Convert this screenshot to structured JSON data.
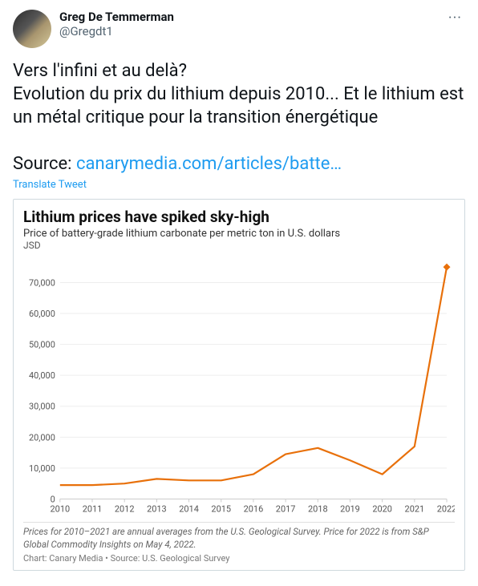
{
  "user": {
    "display_name": "Greg De Temmerman",
    "handle": "@Gregdt1"
  },
  "more_label": "···",
  "tweet": {
    "line1": "Vers l'infini et au delà?",
    "line2": "Evolution du prix du lithium depuis 2010... Et le lithium est un métal critique pour la transition énergétique",
    "source_prefix": "Source: ",
    "source_link": "canarymedia.com/articles/batte…"
  },
  "translate_label": "Translate Tweet",
  "chart": {
    "title": "Lithium prices have spiked sky-high",
    "subtitle": "Price of battery-grade lithium carbonate per metric ton in U.S. dollars",
    "unit": "JSD",
    "type": "line",
    "x_labels": [
      "2010",
      "2011",
      "2012",
      "2013",
      "2014",
      "2015",
      "2016",
      "2017",
      "2018",
      "2019",
      "2020",
      "2021",
      "2022"
    ],
    "y_ticks": [
      0,
      10000,
      20000,
      30000,
      40000,
      50000,
      60000,
      70000
    ],
    "y_tick_labels": [
      "0",
      "10,000",
      "20,000",
      "30,000",
      "40,000",
      "50,000",
      "60,000",
      "70,000"
    ],
    "ylim": [
      0,
      78000
    ],
    "values": [
      4500,
      4500,
      5000,
      6500,
      6000,
      6000,
      8000,
      14500,
      16500,
      12500,
      8000,
      17000,
      75000
    ],
    "line_color": "#e8700a",
    "line_width": 2.2,
    "marker_last": true,
    "marker_size": 4.5,
    "background_color": "#ffffff",
    "grid_color": "#eeeeee",
    "axis_color": "#cccccc",
    "label_color": "#555555",
    "label_fontsize": 11,
    "footnote": "Prices for 2010–2021 are annual averages from the U.S. Geological Survey. Price for 2022 is from S&P Global Commodity Insights on May 4, 2022.",
    "credit": "Chart: Canary Media • Source: U.S. Geological Survey"
  }
}
